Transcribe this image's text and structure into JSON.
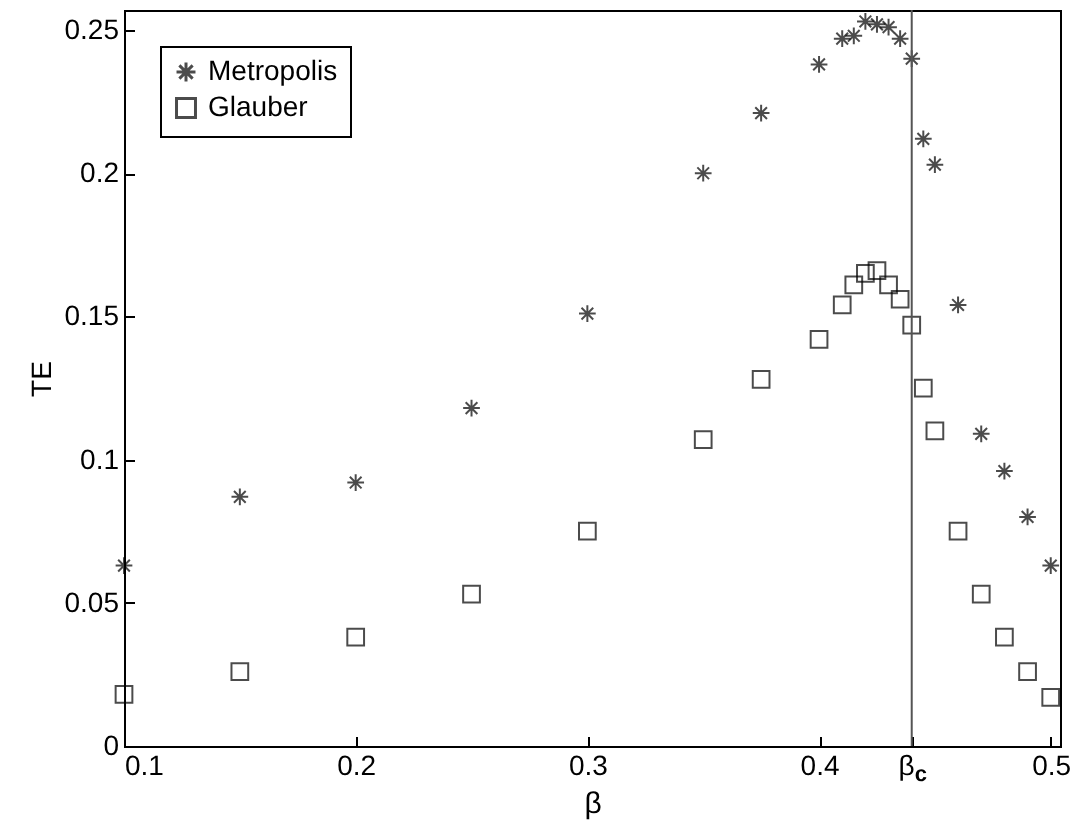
{
  "chart_data": {
    "type": "scatter",
    "xlabel": "β",
    "ylabel": "TE",
    "xlim": [
      0.1,
      0.504
    ],
    "ylim": [
      0,
      0.257
    ],
    "xticks": [
      0.1,
      0.2,
      0.3,
      0.4,
      {
        "value": 0.44,
        "label": "β$_{c}$"
      },
      0.5
    ],
    "yticks": [
      0,
      0.05,
      0.1,
      0.15,
      0.2,
      0.25
    ],
    "legend": "top left",
    "grid": false,
    "ref_lines": [
      {
        "axis": "x",
        "value": 0.44,
        "color": "#555555"
      }
    ],
    "series": [
      {
        "name": "Metropolis",
        "color": "#000000",
        "marker": "cross",
        "x": [
          0.1,
          0.15,
          0.2,
          0.25,
          0.3,
          0.35,
          0.375,
          0.4,
          0.41,
          0.415,
          0.42,
          0.425,
          0.43,
          0.435,
          0.44,
          0.445,
          0.45,
          0.46,
          0.47,
          0.48,
          0.49,
          0.5
        ],
        "values": [
          0.063,
          0.087,
          0.092,
          0.118,
          0.151,
          0.2,
          0.221,
          0.238,
          0.247,
          0.248,
          0.253,
          0.252,
          0.251,
          0.247,
          0.24,
          0.212,
          0.203,
          0.154,
          0.109,
          0.096,
          0.08,
          0.063
        ]
      },
      {
        "name": "Glauber",
        "color": "#000000",
        "marker": "square",
        "x": [
          0.1,
          0.15,
          0.2,
          0.25,
          0.3,
          0.35,
          0.375,
          0.4,
          0.41,
          0.415,
          0.42,
          0.425,
          0.43,
          0.435,
          0.44,
          0.445,
          0.45,
          0.46,
          0.47,
          0.48,
          0.49,
          0.5
        ],
        "values": [
          0.018,
          0.026,
          0.038,
          0.053,
          0.075,
          0.107,
          0.128,
          0.142,
          0.154,
          0.161,
          0.165,
          0.166,
          0.161,
          0.156,
          0.147,
          0.125,
          0.11,
          0.075,
          0.053,
          0.038,
          0.026,
          0.017
        ]
      }
    ]
  }
}
